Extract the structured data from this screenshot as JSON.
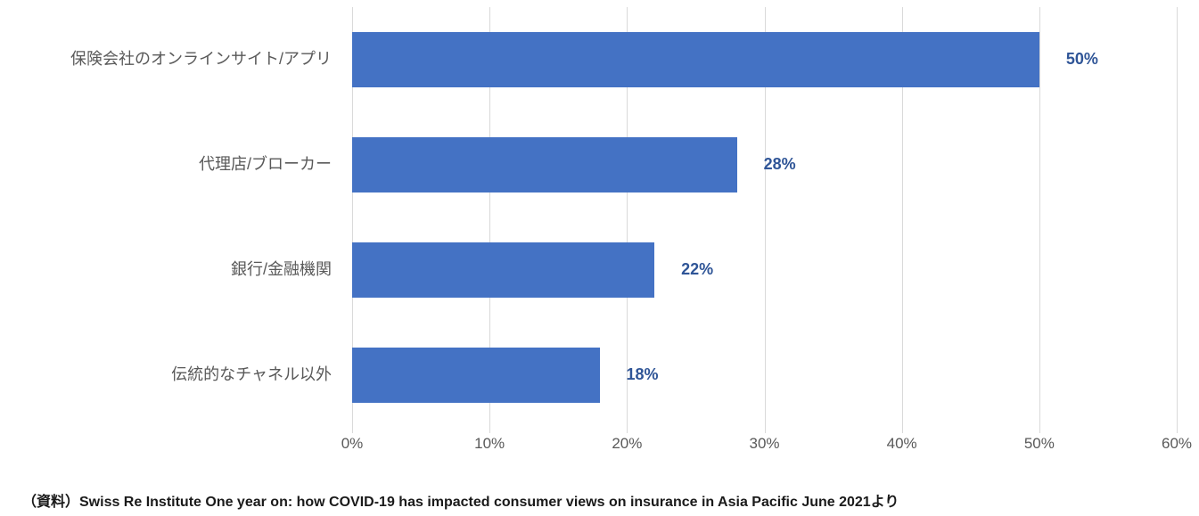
{
  "chart_data": {
    "type": "bar",
    "orientation": "horizontal",
    "title": "",
    "categories": [
      "保険会社のオンラインサイト/アプリ",
      "代理店/ブローカー",
      "銀行/金融機関",
      "伝統的なチャネル以外"
    ],
    "values": [
      50,
      28,
      22,
      18
    ],
    "value_labels": [
      "50%",
      "28%",
      "22%",
      "18%"
    ],
    "xlim": [
      0,
      60
    ],
    "x_ticks": [
      0,
      10,
      20,
      30,
      40,
      50,
      60
    ],
    "x_tick_labels": [
      "0%",
      "10%",
      "20%",
      "30%",
      "40%",
      "50%",
      "60%"
    ],
    "grid": true,
    "legend": "none",
    "bar_color": "#4472c4",
    "value_label_color": "#2f5597",
    "axis_label_color": "#595959",
    "gridline_color": "#d9d9d9"
  },
  "source": {
    "text": "（資料）Swiss Re Institute  One year on: how COVID-19 has impacted consumer views on insurance in Asia Pacific  June 2021より"
  }
}
